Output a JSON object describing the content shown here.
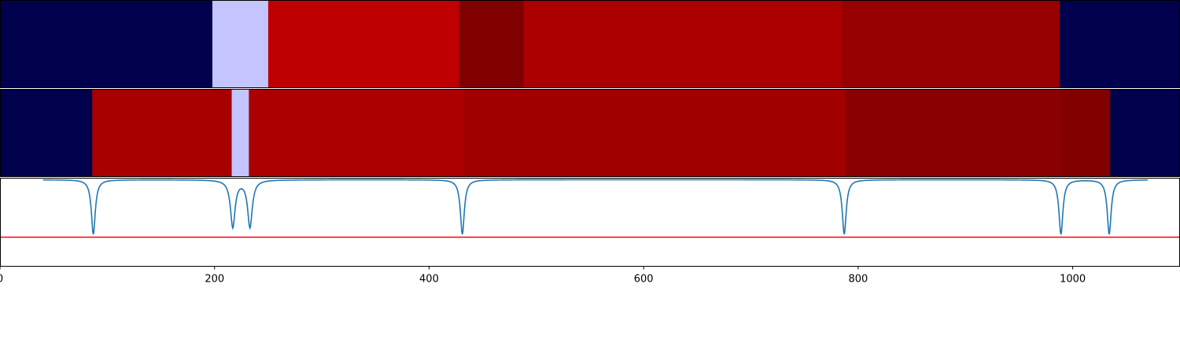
{
  "chart_data": [
    {
      "type": "heatmap",
      "x_range": [
        0,
        1100
      ],
      "segments": [
        {
          "start": 0,
          "end": 198,
          "color": "#00004c"
        },
        {
          "start": 198,
          "end": 250,
          "color": "#c4c4ff"
        },
        {
          "start": 250,
          "end": 428,
          "color": "#bf0000"
        },
        {
          "start": 428,
          "end": 488,
          "color": "#800000"
        },
        {
          "start": 488,
          "end": 785,
          "color": "#ab0000"
        },
        {
          "start": 785,
          "end": 988,
          "color": "#960000"
        },
        {
          "start": 988,
          "end": 1100,
          "color": "#00004c"
        }
      ]
    },
    {
      "type": "heatmap",
      "x_range": [
        0,
        1100
      ],
      "segments": [
        {
          "start": 0,
          "end": 86,
          "color": "#00004c"
        },
        {
          "start": 86,
          "end": 216,
          "color": "#a80000"
        },
        {
          "start": 216,
          "end": 232,
          "color": "#c4c4ff"
        },
        {
          "start": 232,
          "end": 432,
          "color": "#ab0000"
        },
        {
          "start": 432,
          "end": 788,
          "color": "#a00000"
        },
        {
          "start": 788,
          "end": 990,
          "color": "#8a0000"
        },
        {
          "start": 990,
          "end": 1035,
          "color": "#800000"
        },
        {
          "start": 1035,
          "end": 1100,
          "color": "#00004c"
        }
      ]
    },
    {
      "type": "line",
      "x_range": [
        0,
        1100
      ],
      "y_range": [
        -1.5,
        0.02
      ],
      "baseline_from": 40,
      "baseline_to": 1070,
      "dips": [
        {
          "center": 87,
          "depth": 0.95,
          "width": 2.2
        },
        {
          "center": 217,
          "depth": 0.82,
          "width": 2.6
        },
        {
          "center": 233,
          "depth": 0.82,
          "width": 2.6
        },
        {
          "center": 431,
          "depth": 0.95,
          "width": 2.2
        },
        {
          "center": 787,
          "depth": 0.95,
          "width": 2.2
        },
        {
          "center": 989,
          "depth": 0.95,
          "width": 2.2
        },
        {
          "center": 1034,
          "depth": 0.95,
          "width": 2.2
        }
      ],
      "line_color": "#1f77b4",
      "threshold": {
        "y": -1.0,
        "color": "#ff0000"
      },
      "xticks": [
        0,
        200,
        400,
        600,
        800,
        1000
      ]
    }
  ]
}
